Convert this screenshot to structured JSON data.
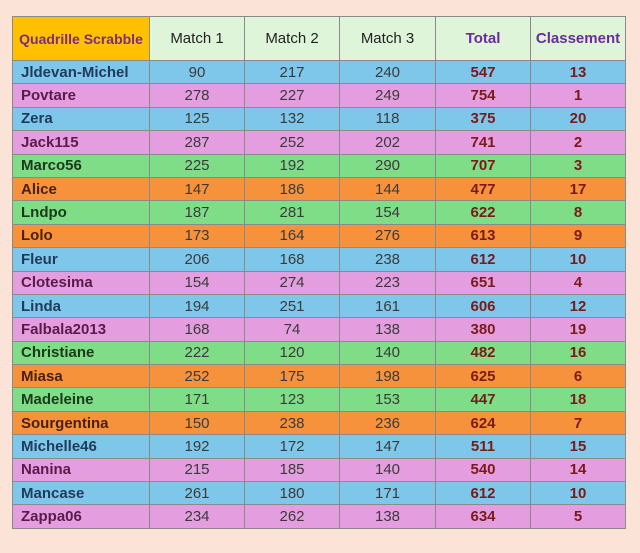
{
  "header": {
    "corner": "Quadrille Scrabble",
    "match1": "Match 1",
    "match2": "Match 2",
    "match3": "Match 3",
    "total": "Total",
    "rank": "Classement"
  },
  "row_colors": {
    "blue": "#7fc7ea",
    "pink": "#e49ee0",
    "green": "#7fdc87",
    "orange": "#f7923c"
  },
  "rows": [
    {
      "name": "Jldevan-Michel",
      "m1": "90",
      "m2": "217",
      "m3": "240",
      "total": "547",
      "rank": "13",
      "color": "blue"
    },
    {
      "name": "Povtare",
      "m1": "278",
      "m2": "227",
      "m3": "249",
      "total": "754",
      "rank": "1",
      "color": "pink"
    },
    {
      "name": "Zera",
      "m1": "125",
      "m2": "132",
      "m3": "118",
      "total": "375",
      "rank": "20",
      "color": "blue"
    },
    {
      "name": "Jack115",
      "m1": "287",
      "m2": "252",
      "m3": "202",
      "total": "741",
      "rank": "2",
      "color": "pink"
    },
    {
      "name": "Marco56",
      "m1": "225",
      "m2": "192",
      "m3": "290",
      "total": "707",
      "rank": "3",
      "color": "green"
    },
    {
      "name": "Alice",
      "m1": "147",
      "m2": "186",
      "m3": "144",
      "total": "477",
      "rank": "17",
      "color": "orange"
    },
    {
      "name": "Lndpo",
      "m1": "187",
      "m2": "281",
      "m3": "154",
      "total": "622",
      "rank": "8",
      "color": "green"
    },
    {
      "name": "Lolo",
      "m1": "173",
      "m2": "164",
      "m3": "276",
      "total": "613",
      "rank": "9",
      "color": "orange"
    },
    {
      "name": "Fleur",
      "m1": "206",
      "m2": "168",
      "m3": "238",
      "total": "612",
      "rank": "10",
      "color": "blue"
    },
    {
      "name": "Clotesima",
      "m1": "154",
      "m2": "274",
      "m3": "223",
      "total": "651",
      "rank": "4",
      "color": "pink"
    },
    {
      "name": "Linda",
      "m1": "194",
      "m2": "251",
      "m3": "161",
      "total": "606",
      "rank": "12",
      "color": "blue"
    },
    {
      "name": "Falbala2013",
      "m1": "168",
      "m2": "74",
      "m3": "138",
      "total": "380",
      "rank": "19",
      "color": "pink"
    },
    {
      "name": "Christiane",
      "m1": "222",
      "m2": "120",
      "m3": "140",
      "total": "482",
      "rank": "16",
      "color": "green"
    },
    {
      "name": "Miasa",
      "m1": "252",
      "m2": "175",
      "m3": "198",
      "total": "625",
      "rank": "6",
      "color": "orange"
    },
    {
      "name": "Madeleine",
      "m1": "171",
      "m2": "123",
      "m3": "153",
      "total": "447",
      "rank": "18",
      "color": "green"
    },
    {
      "name": "Sourgentina",
      "m1": "150",
      "m2": "238",
      "m3": "236",
      "total": "624",
      "rank": "7",
      "color": "orange"
    },
    {
      "name": "Michelle46",
      "m1": "192",
      "m2": "172",
      "m3": "147",
      "total": "511",
      "rank": "15",
      "color": "blue"
    },
    {
      "name": "Nanina",
      "m1": "215",
      "m2": "185",
      "m3": "140",
      "total": "540",
      "rank": "14",
      "color": "pink"
    },
    {
      "name": "Mancase",
      "m1": "261",
      "m2": "180",
      "m3": "171",
      "total": "612",
      "rank": "10",
      "color": "blue"
    },
    {
      "name": "Zappa06",
      "m1": "234",
      "m2": "262",
      "m3": "138",
      "total": "634",
      "rank": "5",
      "color": "pink"
    }
  ]
}
